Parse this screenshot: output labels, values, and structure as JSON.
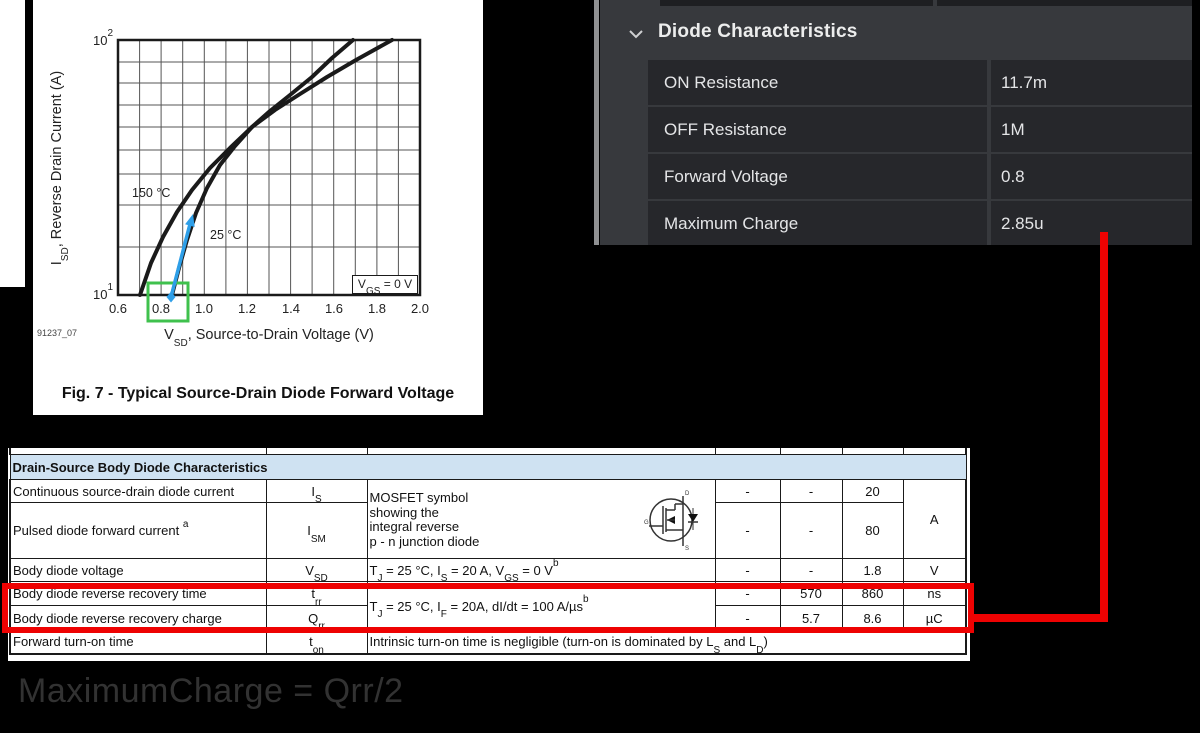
{
  "colors": {
    "background": "#000000",
    "accent_red": "#ee0202",
    "annotation_blue": "#2e9fe8",
    "annotation_green": "#3fc14d",
    "panel_header_bg": "#37393d",
    "panel_row_bg": "#26272b",
    "panel_text": "#e4e5e7",
    "table_header_bg": "#cfe2f2"
  },
  "figure": {
    "caption": "Fig. 7 - Typical Source-Drain Diode Forward Voltage",
    "watermark": "91237_07",
    "y_axis": {
      "pre": "I",
      "sub": "SD",
      "post": ", Reverse Drain Current (A)"
    },
    "x_axis": {
      "pre": "V",
      "sub": "SD",
      "post": ", Source-to-Drain Voltage (V)"
    },
    "y_ticks": [
      {
        "base": "10",
        "exp": "2"
      },
      {
        "base": "10",
        "exp": "1"
      }
    ],
    "x_ticks": [
      "0.6",
      "0.8",
      "1.0",
      "1.2",
      "1.4",
      "1.6",
      "1.8",
      "2.0"
    ],
    "curve_labels": {
      "hot": "150 °C",
      "cold": "25 °C"
    },
    "vgs": {
      "pre": "V",
      "sub": "GS",
      "post": " = 0 V"
    }
  },
  "chart_data": {
    "type": "line",
    "title": "Fig. 7 - Typical Source-Drain Diode Forward Voltage",
    "xlabel": "VSD, Source-to-Drain Voltage (V)",
    "ylabel": "ISD, Reverse Drain Current (A)",
    "xlim": [
      0.6,
      2.0
    ],
    "ylim": [
      10,
      100
    ],
    "yscale": "log",
    "grid": true,
    "annotation": "VGS = 0 V",
    "series": [
      {
        "name": "150 °C",
        "points": [
          [
            0.7,
            10
          ],
          [
            0.81,
            17
          ],
          [
            0.94,
            26
          ],
          [
            1.12,
            38
          ],
          [
            1.22,
            46
          ],
          [
            1.33,
            53
          ],
          [
            1.44,
            62
          ],
          [
            1.57,
            72
          ],
          [
            1.7,
            83
          ],
          [
            1.87,
            100
          ]
        ]
      },
      {
        "name": "25 °C",
        "points": [
          [
            0.85,
            10
          ],
          [
            0.92,
            16
          ],
          [
            1.01,
            26
          ],
          [
            1.14,
            38
          ],
          [
            1.22,
            46
          ],
          [
            1.3,
            53
          ],
          [
            1.4,
            61
          ],
          [
            1.5,
            72
          ],
          [
            1.59,
            85
          ],
          [
            1.69,
            100
          ]
        ]
      }
    ],
    "annotations": {
      "highlight_box_at_x": "0.8",
      "arrow_from": [
        0.86,
        10
      ],
      "arrow_to": [
        0.95,
        21
      ]
    }
  },
  "panel": {
    "title": "Diode Characteristics",
    "collapse_icon": "chevron-down",
    "rows": [
      {
        "label": "ON Resistance",
        "value": "11.7m"
      },
      {
        "label": "OFF Resistance",
        "value": "1M"
      },
      {
        "label": "Forward Voltage",
        "value": "0.8"
      },
      {
        "label": "Maximum Charge",
        "value": "2.85u"
      }
    ]
  },
  "table": {
    "header": "Drain-Source Body Diode Characteristics",
    "mosfet_note": [
      {
        "t": "MOSFET symbol"
      },
      {
        "br": true
      },
      {
        "t": "showing the"
      },
      {
        "br": true
      },
      {
        "t": "integral reverse"
      },
      {
        "br": true
      },
      {
        "t": "p - n junction diode"
      }
    ],
    "mosfet_pins": {
      "d": "D",
      "g": "G",
      "s": "S"
    },
    "unit_amp": "A",
    "shared_condition_rr": [
      {
        "t": "T"
      },
      {
        "sub": "J"
      },
      {
        "t": " = 25 °C, I"
      },
      {
        "sub": "F"
      },
      {
        "t": " = 20A, dI/dt = 100 A/µs"
      },
      {
        "sup": "b"
      }
    ],
    "rows": [
      {
        "parameter": [
          {
            "t": "Continuous source-drain diode current"
          }
        ],
        "symbol": [
          {
            "t": "I"
          },
          {
            "sub": "S"
          }
        ],
        "min": "-",
        "typ": "-",
        "max": "20"
      },
      {
        "parameter": [
          {
            "t": "Pulsed diode forward current "
          },
          {
            "sup": "a"
          }
        ],
        "symbol": [
          {
            "t": "I"
          },
          {
            "sub": "SM"
          }
        ],
        "min": "-",
        "typ": "-",
        "max": "80"
      },
      {
        "parameter": [
          {
            "t": "Body diode voltage"
          }
        ],
        "symbol": [
          {
            "t": "V"
          },
          {
            "sub": "SD"
          }
        ],
        "conditions": [
          {
            "t": "T"
          },
          {
            "sub": "J"
          },
          {
            "t": " = 25 °C, I"
          },
          {
            "sub": "S"
          },
          {
            "t": " = 20 A, V"
          },
          {
            "sub": "GS"
          },
          {
            "t": " = 0 V"
          },
          {
            "sup": "b"
          }
        ],
        "min": "-",
        "typ": "-",
        "max": "1.8",
        "unit": "V"
      },
      {
        "parameter": [
          {
            "t": "Body diode reverse recovery time"
          }
        ],
        "symbol": [
          {
            "t": "t"
          },
          {
            "sub": "rr"
          }
        ],
        "min": "-",
        "typ": "570",
        "max": "860",
        "unit": "ns"
      },
      {
        "parameter": [
          {
            "t": "Body diode reverse recovery charge"
          }
        ],
        "symbol": [
          {
            "t": "Q"
          },
          {
            "sub": "rr"
          }
        ],
        "min": "-",
        "typ": "5.7",
        "max": "8.6",
        "unit": "µC"
      },
      {
        "parameter": [
          {
            "t": "Forward turn-on time"
          }
        ],
        "symbol": [
          {
            "t": "t"
          },
          {
            "sub": "on"
          }
        ],
        "note": [
          {
            "t": "Intrinsic turn-on time is negligible (turn-on is dominated by L"
          },
          {
            "sub": "S"
          },
          {
            "t": " and L"
          },
          {
            "sub": "D"
          },
          {
            "t": ")"
          }
        ]
      }
    ]
  },
  "formula": "MaximumCharge = Qrr/2"
}
